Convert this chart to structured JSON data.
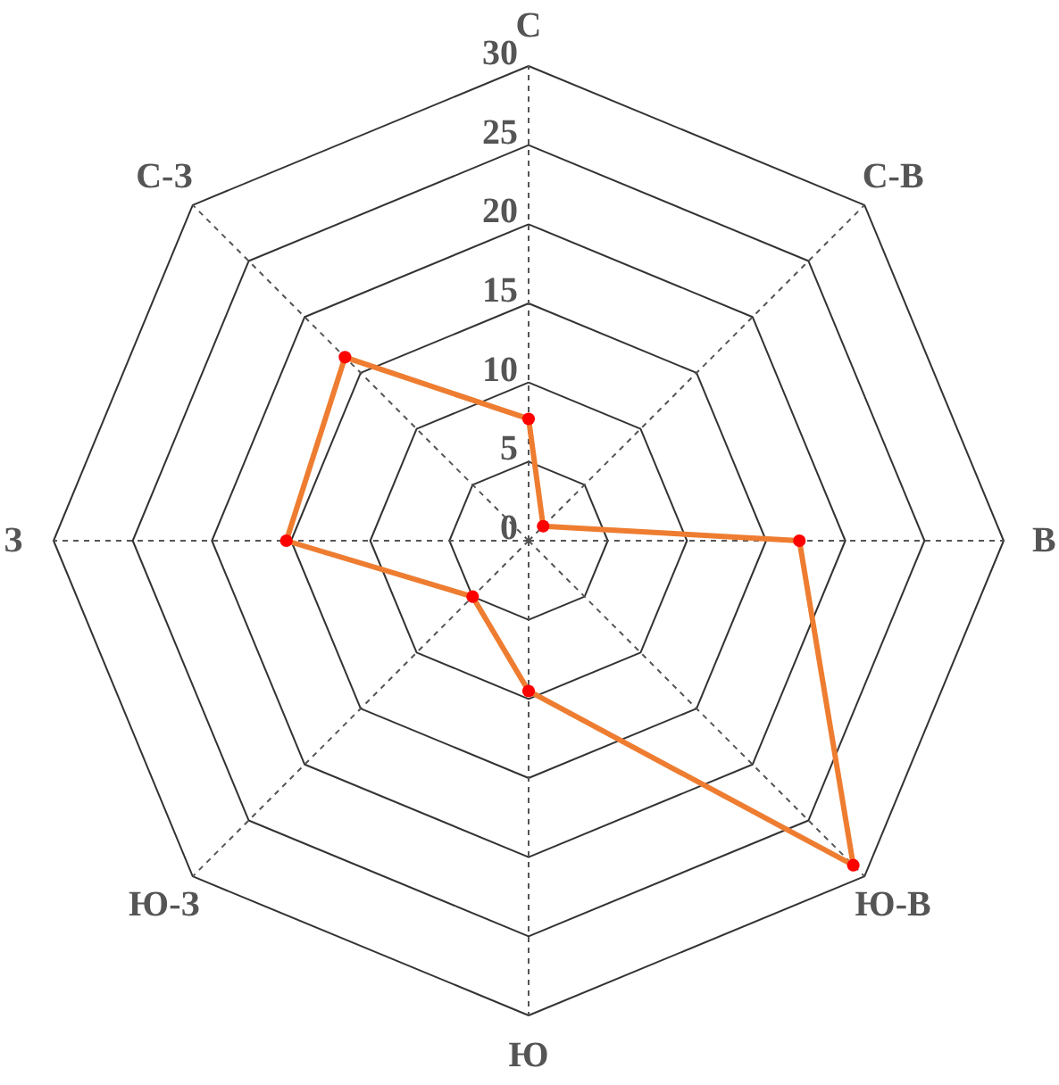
{
  "chart_data": {
    "type": "radar",
    "categories": [
      "С",
      "С-В",
      "В",
      "Ю-В",
      "Ю",
      "Ю-З",
      "З",
      "С-З"
    ],
    "series": [
      {
        "color": "#ee7d31",
        "values": [
          7.7,
          1.3,
          17.1,
          29.0,
          9.5,
          5.0,
          15.3,
          16.4
        ]
      }
    ],
    "ylim": [
      0,
      30
    ],
    "yticks": [
      0,
      5,
      10,
      15,
      20,
      25,
      30
    ],
    "grid": true,
    "marker": "circle"
  }
}
